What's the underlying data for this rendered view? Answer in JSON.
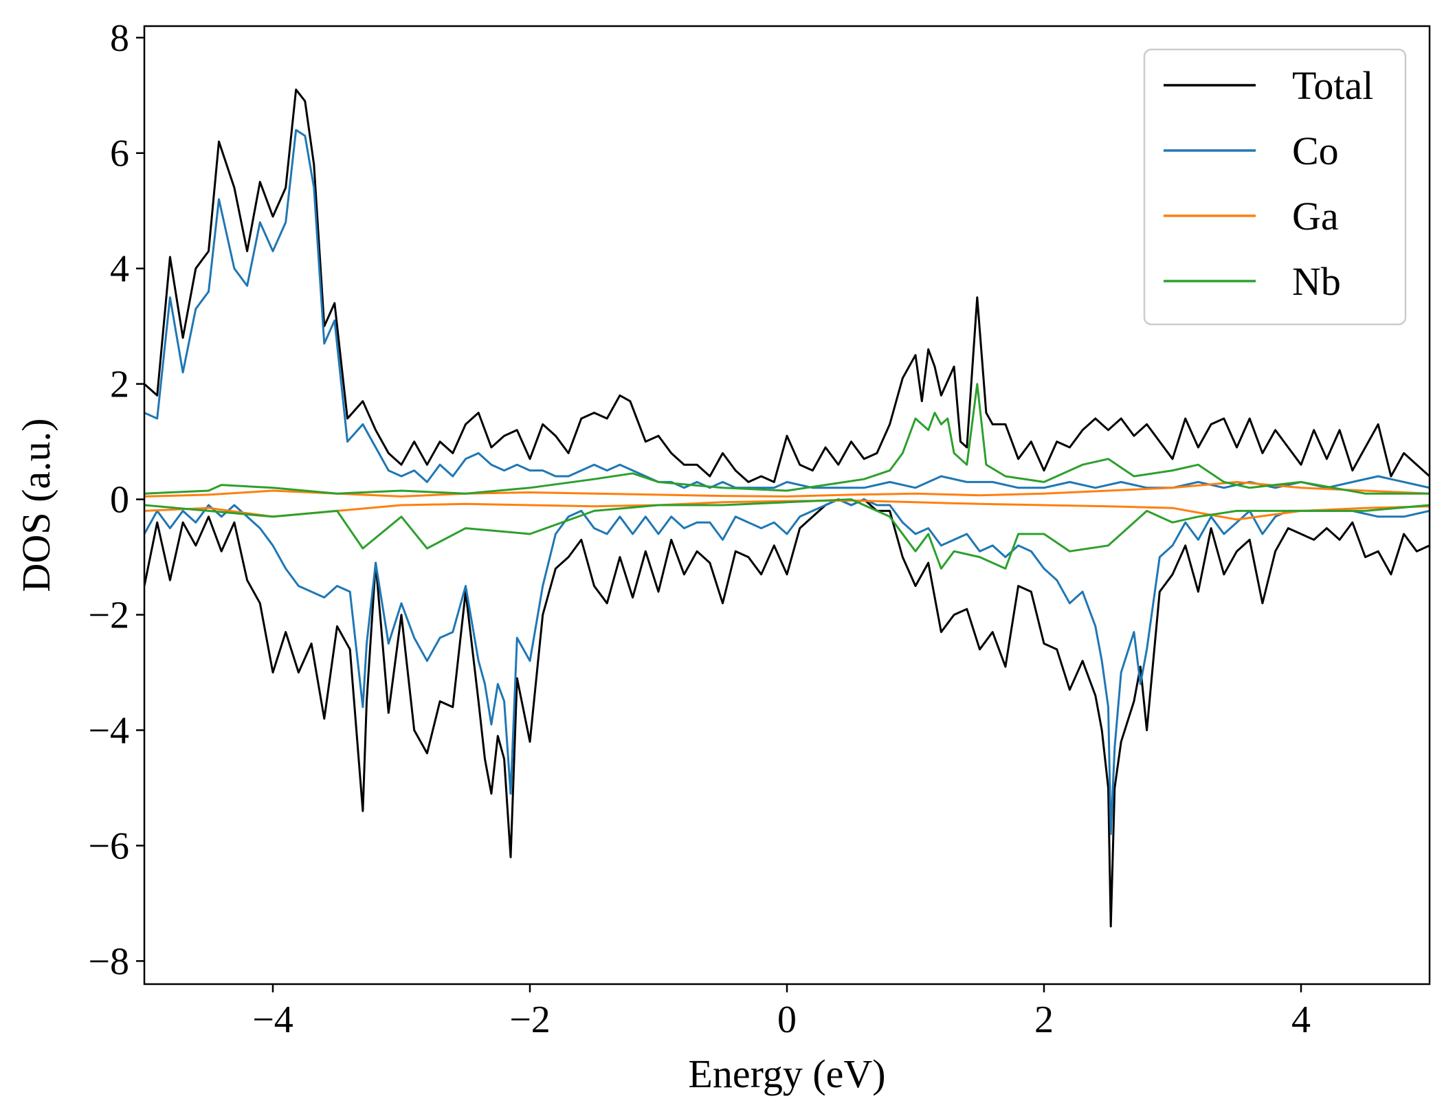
{
  "chart_data": {
    "type": "line",
    "title": "",
    "xlabel": "Energy (eV)",
    "ylabel": "DOS (a.u.)",
    "xlim": [
      -5,
      5
    ],
    "ylim": [
      -8.4,
      8.2
    ],
    "xticks": [
      -4,
      -2,
      0,
      2,
      4
    ],
    "xtick_labels": [
      "−4",
      "−2",
      "0",
      "2",
      "4"
    ],
    "yticks": [
      -8,
      -6,
      -4,
      -2,
      0,
      2,
      4,
      6,
      8
    ],
    "ytick_labels": [
      "−8",
      "−6",
      "−4",
      "−2",
      "0",
      "2",
      "4",
      "6",
      "8"
    ],
    "grid": false,
    "legend_position": "top-right",
    "legend": [
      {
        "label": "Total",
        "color": "#000000"
      },
      {
        "label": "Co",
        "color": "#1f77b4"
      },
      {
        "label": "Ga",
        "color": "#ff7f0e"
      },
      {
        "label": "Nb",
        "color": "#2ca02c"
      }
    ],
    "series": [
      {
        "name": "Total",
        "spin": "up",
        "color": "#000000",
        "x": [
          -5.0,
          -4.9,
          -4.8,
          -4.7,
          -4.6,
          -4.5,
          -4.42,
          -4.3,
          -4.2,
          -4.1,
          -4.0,
          -3.9,
          -3.82,
          -3.75,
          -3.68,
          -3.6,
          -3.52,
          -3.42,
          -3.3,
          -3.2,
          -3.1,
          -3.0,
          -2.9,
          -2.8,
          -2.7,
          -2.6,
          -2.5,
          -2.4,
          -2.3,
          -2.2,
          -2.1,
          -2.0,
          -1.9,
          -1.8,
          -1.7,
          -1.6,
          -1.5,
          -1.4,
          -1.3,
          -1.22,
          -1.1,
          -1.0,
          -0.9,
          -0.8,
          -0.7,
          -0.6,
          -0.5,
          -0.4,
          -0.3,
          -0.2,
          -0.1,
          0.0,
          0.1,
          0.2,
          0.3,
          0.4,
          0.5,
          0.6,
          0.7,
          0.8,
          0.9,
          1.0,
          1.05,
          1.1,
          1.15,
          1.2,
          1.3,
          1.35,
          1.4,
          1.48,
          1.55,
          1.6,
          1.7,
          1.8,
          1.9,
          2.0,
          2.1,
          2.2,
          2.3,
          2.4,
          2.5,
          2.6,
          2.7,
          2.8,
          2.9,
          3.0,
          3.1,
          3.2,
          3.3,
          3.4,
          3.5,
          3.6,
          3.7,
          3.8,
          3.9,
          4.0,
          4.1,
          4.2,
          4.3,
          4.4,
          4.5,
          4.6,
          4.7,
          4.8,
          4.9,
          5.0
        ],
        "y": [
          2.0,
          1.8,
          4.2,
          2.8,
          4.0,
          4.3,
          6.2,
          5.4,
          4.3,
          5.5,
          4.9,
          5.4,
          7.1,
          6.9,
          5.8,
          3.0,
          3.4,
          1.4,
          1.7,
          1.2,
          0.8,
          0.6,
          1.0,
          0.6,
          1.0,
          0.8,
          1.3,
          1.5,
          0.9,
          1.1,
          1.2,
          0.7,
          1.3,
          1.1,
          0.8,
          1.4,
          1.5,
          1.4,
          1.8,
          1.7,
          1.0,
          1.1,
          0.8,
          0.6,
          0.6,
          0.4,
          0.8,
          0.5,
          0.3,
          0.4,
          0.3,
          1.1,
          0.6,
          0.5,
          0.9,
          0.6,
          1.0,
          0.7,
          0.8,
          1.3,
          2.1,
          2.5,
          1.7,
          2.6,
          2.3,
          1.8,
          2.3,
          1.0,
          0.9,
          3.5,
          1.5,
          1.3,
          1.3,
          0.7,
          1.0,
          0.5,
          1.0,
          0.9,
          1.2,
          1.4,
          1.2,
          1.4,
          1.1,
          1.3,
          1.0,
          0.7,
          1.4,
          0.9,
          1.3,
          1.4,
          0.9,
          1.4,
          0.8,
          1.2,
          0.9,
          0.6,
          1.2,
          0.7,
          1.2,
          0.5,
          0.9,
          1.3,
          0.4,
          0.8,
          0.6,
          0.4
        ]
      },
      {
        "name": "Total",
        "spin": "down",
        "color": "#000000",
        "x": [
          -5.0,
          -4.9,
          -4.8,
          -4.7,
          -4.6,
          -4.5,
          -4.4,
          -4.3,
          -4.2,
          -4.1,
          -4.0,
          -3.9,
          -3.8,
          -3.7,
          -3.6,
          -3.5,
          -3.4,
          -3.3,
          -3.27,
          -3.2,
          -3.1,
          -3.0,
          -2.9,
          -2.8,
          -2.7,
          -2.6,
          -2.5,
          -2.4,
          -2.35,
          -2.3,
          -2.25,
          -2.2,
          -2.15,
          -2.1,
          -2.0,
          -1.9,
          -1.8,
          -1.7,
          -1.6,
          -1.5,
          -1.4,
          -1.3,
          -1.2,
          -1.1,
          -1.0,
          -0.9,
          -0.8,
          -0.7,
          -0.6,
          -0.5,
          -0.4,
          -0.3,
          -0.2,
          -0.1,
          0.0,
          0.1,
          0.2,
          0.3,
          0.4,
          0.5,
          0.6,
          0.7,
          0.8,
          0.9,
          1.0,
          1.1,
          1.2,
          1.3,
          1.4,
          1.5,
          1.6,
          1.7,
          1.8,
          1.9,
          2.0,
          2.1,
          2.2,
          2.3,
          2.4,
          2.45,
          2.5,
          2.52,
          2.55,
          2.6,
          2.7,
          2.75,
          2.8,
          2.9,
          3.0,
          3.1,
          3.2,
          3.3,
          3.4,
          3.5,
          3.6,
          3.7,
          3.8,
          3.9,
          4.0,
          4.1,
          4.2,
          4.3,
          4.4,
          4.5,
          4.6,
          4.7,
          4.8,
          4.9,
          5.0
        ],
        "y": [
          -1.5,
          -0.4,
          -1.4,
          -0.4,
          -0.8,
          -0.3,
          -0.9,
          -0.4,
          -1.4,
          -1.8,
          -3.0,
          -2.3,
          -3.0,
          -2.5,
          -3.8,
          -2.2,
          -2.6,
          -5.4,
          -3.5,
          -1.1,
          -3.7,
          -2.0,
          -4.0,
          -4.4,
          -3.5,
          -3.6,
          -1.6,
          -3.5,
          -4.5,
          -5.1,
          -4.1,
          -4.5,
          -6.2,
          -3.1,
          -4.2,
          -2.0,
          -1.2,
          -1.0,
          -0.7,
          -1.5,
          -1.8,
          -1.0,
          -1.7,
          -0.9,
          -1.6,
          -0.7,
          -1.3,
          -0.9,
          -1.1,
          -1.8,
          -0.9,
          -1.0,
          -1.3,
          -0.8,
          -1.3,
          -0.5,
          -0.3,
          -0.1,
          0.0,
          -0.1,
          0.0,
          -0.2,
          -0.2,
          -1.0,
          -1.5,
          -1.1,
          -2.3,
          -2.0,
          -1.9,
          -2.6,
          -2.3,
          -2.9,
          -1.5,
          -1.6,
          -2.5,
          -2.6,
          -3.3,
          -2.8,
          -3.4,
          -4.0,
          -5.0,
          -7.4,
          -5.0,
          -4.2,
          -3.5,
          -2.9,
          -4.0,
          -1.6,
          -1.3,
          -0.8,
          -1.6,
          -0.5,
          -1.3,
          -0.9,
          -0.7,
          -1.8,
          -0.9,
          -0.5,
          -0.6,
          -0.7,
          -0.5,
          -0.7,
          -0.4,
          -1.0,
          -0.9,
          -1.3,
          -0.6,
          -0.9,
          -0.8
        ]
      },
      {
        "name": "Co",
        "spin": "up",
        "color": "#1f77b4",
        "x": [
          -5.0,
          -4.9,
          -4.8,
          -4.7,
          -4.6,
          -4.5,
          -4.42,
          -4.3,
          -4.2,
          -4.1,
          -4.0,
          -3.9,
          -3.82,
          -3.75,
          -3.68,
          -3.6,
          -3.52,
          -3.42,
          -3.3,
          -3.2,
          -3.1,
          -3.0,
          -2.9,
          -2.8,
          -2.7,
          -2.6,
          -2.5,
          -2.4,
          -2.3,
          -2.2,
          -2.1,
          -2.0,
          -1.9,
          -1.8,
          -1.7,
          -1.6,
          -1.5,
          -1.4,
          -1.3,
          -1.2,
          -1.1,
          -1.0,
          -0.9,
          -0.8,
          -0.7,
          -0.6,
          -0.5,
          -0.4,
          -0.3,
          -0.2,
          -0.1,
          0.0,
          0.2,
          0.4,
          0.6,
          0.8,
          1.0,
          1.2,
          1.4,
          1.6,
          1.8,
          2.0,
          2.2,
          2.4,
          2.6,
          2.8,
          3.0,
          3.2,
          3.4,
          3.6,
          3.8,
          4.0,
          4.2,
          4.4,
          4.6,
          4.8,
          5.0
        ],
        "y": [
          1.5,
          1.4,
          3.5,
          2.2,
          3.3,
          3.6,
          5.2,
          4.0,
          3.7,
          4.8,
          4.3,
          4.8,
          6.4,
          6.3,
          5.4,
          2.7,
          3.1,
          1.0,
          1.3,
          0.9,
          0.5,
          0.4,
          0.5,
          0.3,
          0.6,
          0.4,
          0.7,
          0.8,
          0.6,
          0.5,
          0.6,
          0.5,
          0.5,
          0.4,
          0.4,
          0.5,
          0.6,
          0.5,
          0.6,
          0.5,
          0.4,
          0.3,
          0.3,
          0.2,
          0.3,
          0.2,
          0.3,
          0.2,
          0.2,
          0.2,
          0.2,
          0.3,
          0.2,
          0.2,
          0.2,
          0.3,
          0.2,
          0.4,
          0.3,
          0.3,
          0.2,
          0.2,
          0.3,
          0.2,
          0.3,
          0.2,
          0.2,
          0.3,
          0.2,
          0.3,
          0.2,
          0.3,
          0.2,
          0.3,
          0.4,
          0.3,
          0.2
        ]
      },
      {
        "name": "Co",
        "spin": "down",
        "color": "#1f77b4",
        "x": [
          -5.0,
          -4.9,
          -4.8,
          -4.7,
          -4.6,
          -4.5,
          -4.4,
          -4.3,
          -4.2,
          -4.1,
          -4.0,
          -3.9,
          -3.8,
          -3.7,
          -3.6,
          -3.5,
          -3.4,
          -3.3,
          -3.27,
          -3.2,
          -3.1,
          -3.0,
          -2.9,
          -2.8,
          -2.7,
          -2.6,
          -2.5,
          -2.4,
          -2.35,
          -2.3,
          -2.25,
          -2.2,
          -2.15,
          -2.1,
          -2.0,
          -1.9,
          -1.8,
          -1.7,
          -1.6,
          -1.5,
          -1.4,
          -1.3,
          -1.2,
          -1.1,
          -1.0,
          -0.9,
          -0.8,
          -0.7,
          -0.6,
          -0.5,
          -0.4,
          -0.3,
          -0.2,
          -0.1,
          0.0,
          0.1,
          0.2,
          0.3,
          0.4,
          0.5,
          0.6,
          0.7,
          0.8,
          0.9,
          1.0,
          1.1,
          1.2,
          1.3,
          1.4,
          1.5,
          1.6,
          1.7,
          1.8,
          1.9,
          2.0,
          2.1,
          2.2,
          2.3,
          2.4,
          2.45,
          2.5,
          2.52,
          2.55,
          2.6,
          2.7,
          2.75,
          2.8,
          2.9,
          3.0,
          3.1,
          3.2,
          3.3,
          3.4,
          3.5,
          3.6,
          3.7,
          3.8,
          3.9,
          4.0,
          4.2,
          4.4,
          4.6,
          4.8,
          5.0
        ],
        "y": [
          -0.6,
          -0.2,
          -0.5,
          -0.2,
          -0.4,
          -0.1,
          -0.3,
          -0.1,
          -0.3,
          -0.5,
          -0.8,
          -1.2,
          -1.5,
          -1.6,
          -1.7,
          -1.5,
          -1.6,
          -3.6,
          -2.5,
          -1.1,
          -2.5,
          -1.8,
          -2.4,
          -2.8,
          -2.4,
          -2.3,
          -1.5,
          -2.8,
          -3.2,
          -3.9,
          -3.2,
          -3.5,
          -5.1,
          -2.4,
          -2.8,
          -1.5,
          -0.6,
          -0.3,
          -0.2,
          -0.5,
          -0.6,
          -0.3,
          -0.6,
          -0.3,
          -0.6,
          -0.3,
          -0.5,
          -0.4,
          -0.4,
          -0.7,
          -0.3,
          -0.4,
          -0.5,
          -0.4,
          -0.6,
          -0.3,
          -0.2,
          -0.1,
          0.0,
          -0.1,
          0.0,
          -0.1,
          -0.1,
          -0.4,
          -0.6,
          -0.5,
          -0.8,
          -0.7,
          -0.6,
          -0.9,
          -0.8,
          -1.0,
          -0.8,
          -0.9,
          -1.2,
          -1.4,
          -1.8,
          -1.6,
          -2.2,
          -2.8,
          -3.6,
          -5.8,
          -4.3,
          -3.0,
          -2.3,
          -3.2,
          -2.6,
          -1.0,
          -0.8,
          -0.4,
          -0.7,
          -0.3,
          -0.6,
          -0.4,
          -0.2,
          -0.6,
          -0.3,
          -0.2,
          -0.2,
          -0.2,
          -0.2,
          -0.3,
          -0.3,
          -0.2
        ]
      },
      {
        "name": "Ga",
        "spin": "up",
        "color": "#ff7f0e",
        "x": [
          -5.0,
          -4.5,
          -4.0,
          -3.5,
          -3.0,
          -2.5,
          -2.0,
          -1.5,
          -1.0,
          -0.5,
          0.0,
          0.5,
          1.0,
          1.5,
          2.0,
          2.5,
          3.0,
          3.5,
          4.0,
          4.5,
          5.0
        ],
        "y": [
          0.05,
          0.08,
          0.15,
          0.1,
          0.05,
          0.1,
          0.12,
          0.1,
          0.08,
          0.06,
          0.05,
          0.08,
          0.1,
          0.07,
          0.1,
          0.15,
          0.2,
          0.3,
          0.2,
          0.15,
          0.1
        ]
      },
      {
        "name": "Ga",
        "spin": "down",
        "color": "#ff7f0e",
        "x": [
          -5.0,
          -4.5,
          -4.0,
          -3.5,
          -3.0,
          -2.5,
          -2.0,
          -1.5,
          -1.0,
          -0.5,
          0.0,
          0.5,
          1.0,
          1.5,
          2.0,
          2.5,
          3.0,
          3.5,
          4.0,
          4.5,
          5.0
        ],
        "y": [
          -0.2,
          -0.15,
          -0.3,
          -0.2,
          -0.1,
          -0.08,
          -0.1,
          -0.12,
          -0.1,
          -0.05,
          -0.03,
          -0.02,
          -0.05,
          -0.08,
          -0.1,
          -0.12,
          -0.15,
          -0.35,
          -0.2,
          -0.15,
          -0.12
        ]
      },
      {
        "name": "Nb",
        "spin": "up",
        "color": "#2ca02c",
        "x": [
          -5.0,
          -4.5,
          -4.4,
          -4.0,
          -3.5,
          -3.0,
          -2.5,
          -2.0,
          -1.5,
          -1.2,
          -1.0,
          -0.5,
          0.0,
          0.3,
          0.6,
          0.8,
          0.9,
          1.0,
          1.1,
          1.15,
          1.2,
          1.25,
          1.3,
          1.4,
          1.48,
          1.55,
          1.7,
          2.0,
          2.3,
          2.5,
          2.7,
          3.0,
          3.2,
          3.4,
          3.6,
          4.0,
          4.5,
          5.0
        ],
        "y": [
          0.1,
          0.15,
          0.25,
          0.2,
          0.1,
          0.15,
          0.1,
          0.2,
          0.35,
          0.45,
          0.3,
          0.2,
          0.15,
          0.25,
          0.35,
          0.5,
          0.8,
          1.4,
          1.2,
          1.5,
          1.3,
          1.4,
          0.8,
          0.6,
          2.0,
          0.6,
          0.4,
          0.3,
          0.6,
          0.7,
          0.4,
          0.5,
          0.6,
          0.3,
          0.2,
          0.3,
          0.1,
          0.1
        ]
      },
      {
        "name": "Nb",
        "spin": "down",
        "color": "#2ca02c",
        "x": [
          -5.0,
          -4.5,
          -4.0,
          -3.5,
          -3.3,
          -3.0,
          -2.8,
          -2.5,
          -2.0,
          -1.5,
          -1.0,
          -0.5,
          0.0,
          0.5,
          0.8,
          1.0,
          1.1,
          1.2,
          1.3,
          1.5,
          1.7,
          1.8,
          2.0,
          2.2,
          2.5,
          2.8,
          3.0,
          3.2,
          3.5,
          4.0,
          4.5,
          5.0
        ],
        "y": [
          -0.1,
          -0.2,
          -0.3,
          -0.2,
          -0.85,
          -0.3,
          -0.85,
          -0.5,
          -0.6,
          -0.2,
          -0.1,
          -0.1,
          -0.05,
          0.0,
          -0.3,
          -0.9,
          -0.6,
          -1.2,
          -0.9,
          -1.0,
          -1.2,
          -0.6,
          -0.6,
          -0.9,
          -0.8,
          -0.2,
          -0.4,
          -0.3,
          -0.2,
          -0.2,
          -0.2,
          -0.1
        ]
      }
    ]
  }
}
